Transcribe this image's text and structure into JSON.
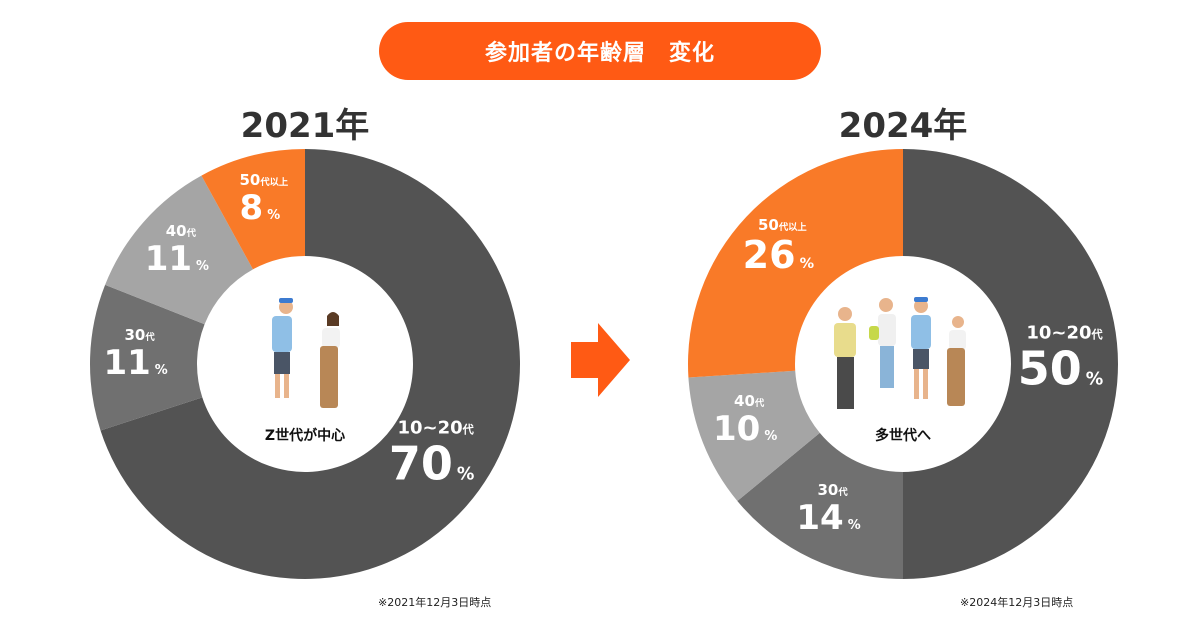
{
  "header": {
    "title": "参加者の年齢層　変化"
  },
  "colors": {
    "accent": "#ff5a14",
    "orange_segment": "#f97a28",
    "dark_segment": "#535353",
    "mid_segment": "#707070",
    "light_segment": "#a5a5a5"
  },
  "chart_data": [
    {
      "type": "pie",
      "style": "donut",
      "title": "2021年",
      "center_label": "Z世代が中心",
      "note": "※2021年12月3日時点",
      "slices": [
        {
          "label": "10~20",
          "label_suffix": "代",
          "value": 70,
          "display": "70",
          "unit": "%",
          "color": "#535353"
        },
        {
          "label": "30",
          "label_suffix": "代",
          "value": 11,
          "display": "11",
          "unit": "%",
          "color": "#707070"
        },
        {
          "label": "40",
          "label_suffix": "代",
          "value": 11,
          "display": "11",
          "unit": "%",
          "color": "#a5a5a5"
        },
        {
          "label": "50",
          "label_suffix": "代以上",
          "value": 8,
          "display": "8",
          "unit": "%",
          "color": "#f97a28"
        }
      ]
    },
    {
      "type": "pie",
      "style": "donut",
      "title": "2024年",
      "center_label": "多世代へ",
      "note": "※2024年12月3日時点",
      "slices": [
        {
          "label": "10~20",
          "label_suffix": "代",
          "value": 50,
          "display": "50",
          "unit": "%",
          "color": "#535353"
        },
        {
          "label": "30",
          "label_suffix": "代",
          "value": 14,
          "display": "14",
          "unit": "%",
          "color": "#707070"
        },
        {
          "label": "40",
          "label_suffix": "代",
          "value": 10,
          "display": "10",
          "unit": "%",
          "color": "#a5a5a5"
        },
        {
          "label": "50",
          "label_suffix": "代以上",
          "value": 26,
          "display": "26",
          "unit": "%",
          "color": "#f97a28"
        }
      ]
    }
  ]
}
